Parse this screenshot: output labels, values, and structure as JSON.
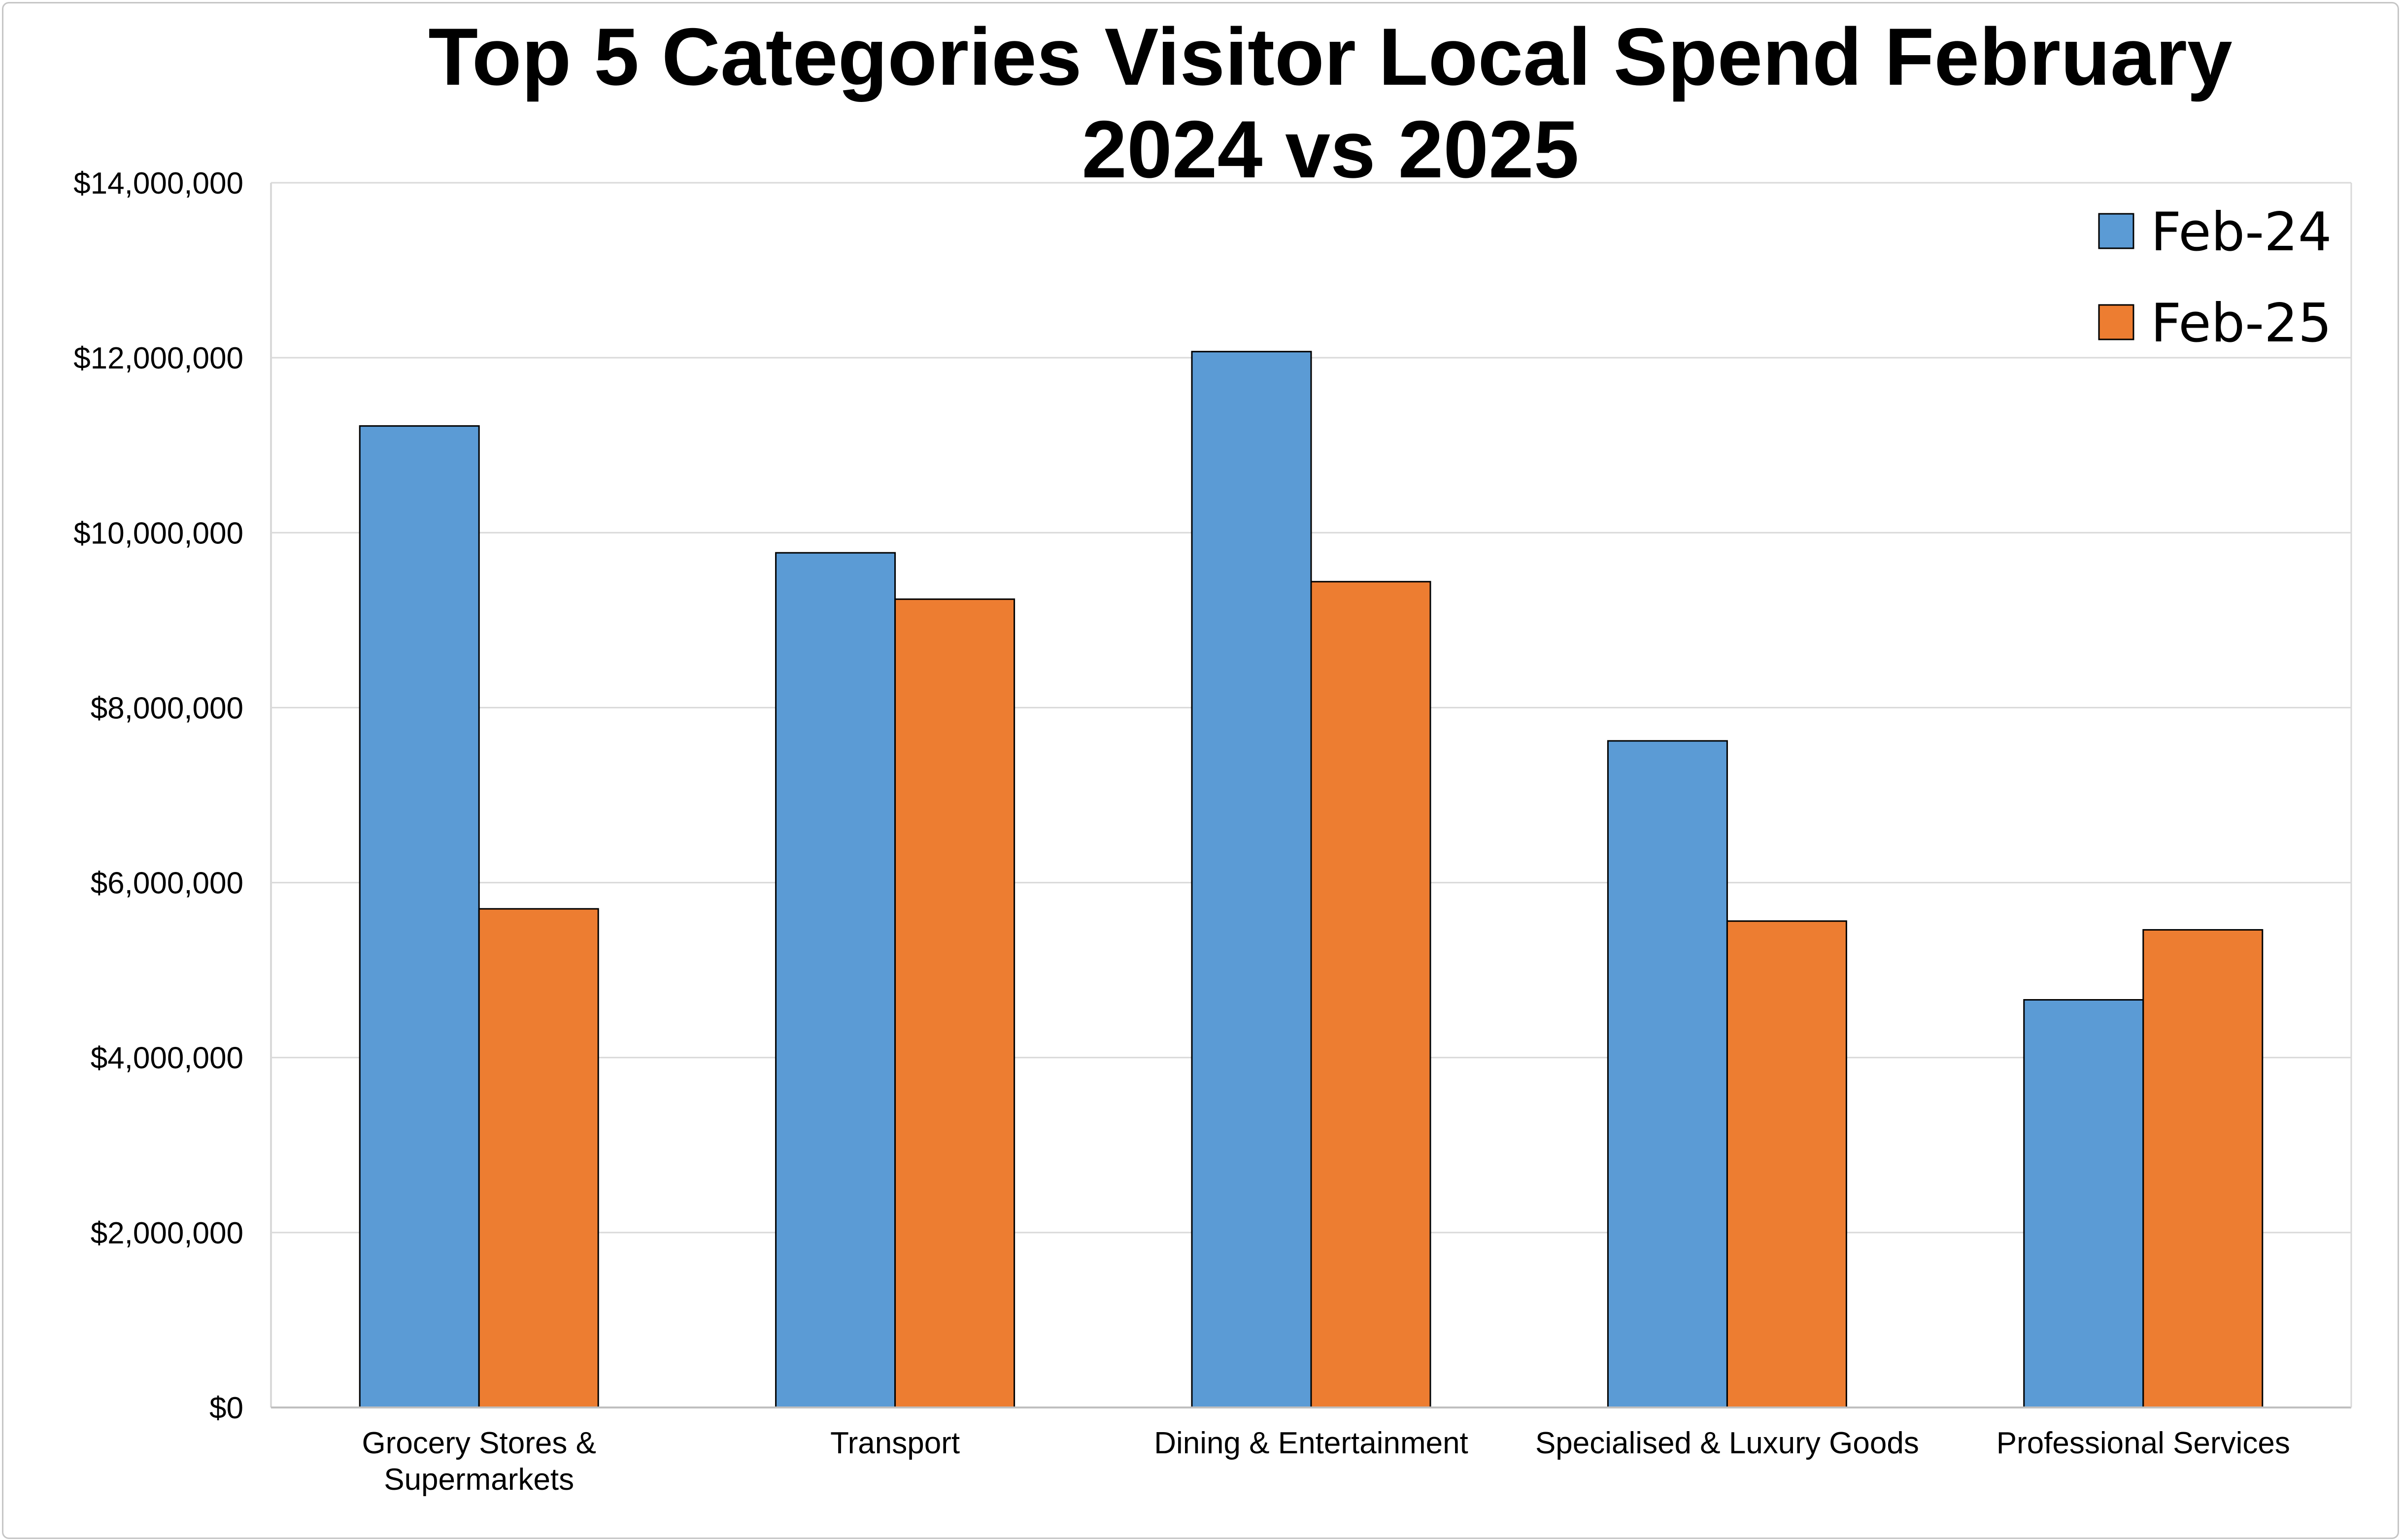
{
  "chart_data": {
    "type": "bar",
    "title_lines": [
      "Top 5 Categories Visitor Local Spend February",
      "2024 vs 2025"
    ],
    "categories": [
      [
        "Grocery Stores &",
        "Supermarkets"
      ],
      [
        "Transport"
      ],
      [
        "Dining & Entertainment"
      ],
      [
        "Specialised & Luxury Goods"
      ],
      [
        "Professional Services"
      ]
    ],
    "series": [
      {
        "name": "Feb-24",
        "color": "#5b9bd5",
        "values": [
          11220000,
          9770000,
          12070000,
          7620000,
          4660000
        ]
      },
      {
        "name": "Feb-25",
        "color": "#ed7d31",
        "values": [
          5700000,
          9240000,
          9440000,
          5560000,
          5460000
        ]
      }
    ],
    "y_ticks": [
      "$0",
      "$2,000,000",
      "$4,000,000",
      "$6,000,000",
      "$8,000,000",
      "$10,000,000",
      "$12,000,000",
      "$14,000,000"
    ],
    "ylim": [
      0,
      14000000
    ],
    "grid": true,
    "legend_position": "top-right",
    "gridline_color": "#d9d9d9",
    "bar_outline_color": "#000000"
  }
}
